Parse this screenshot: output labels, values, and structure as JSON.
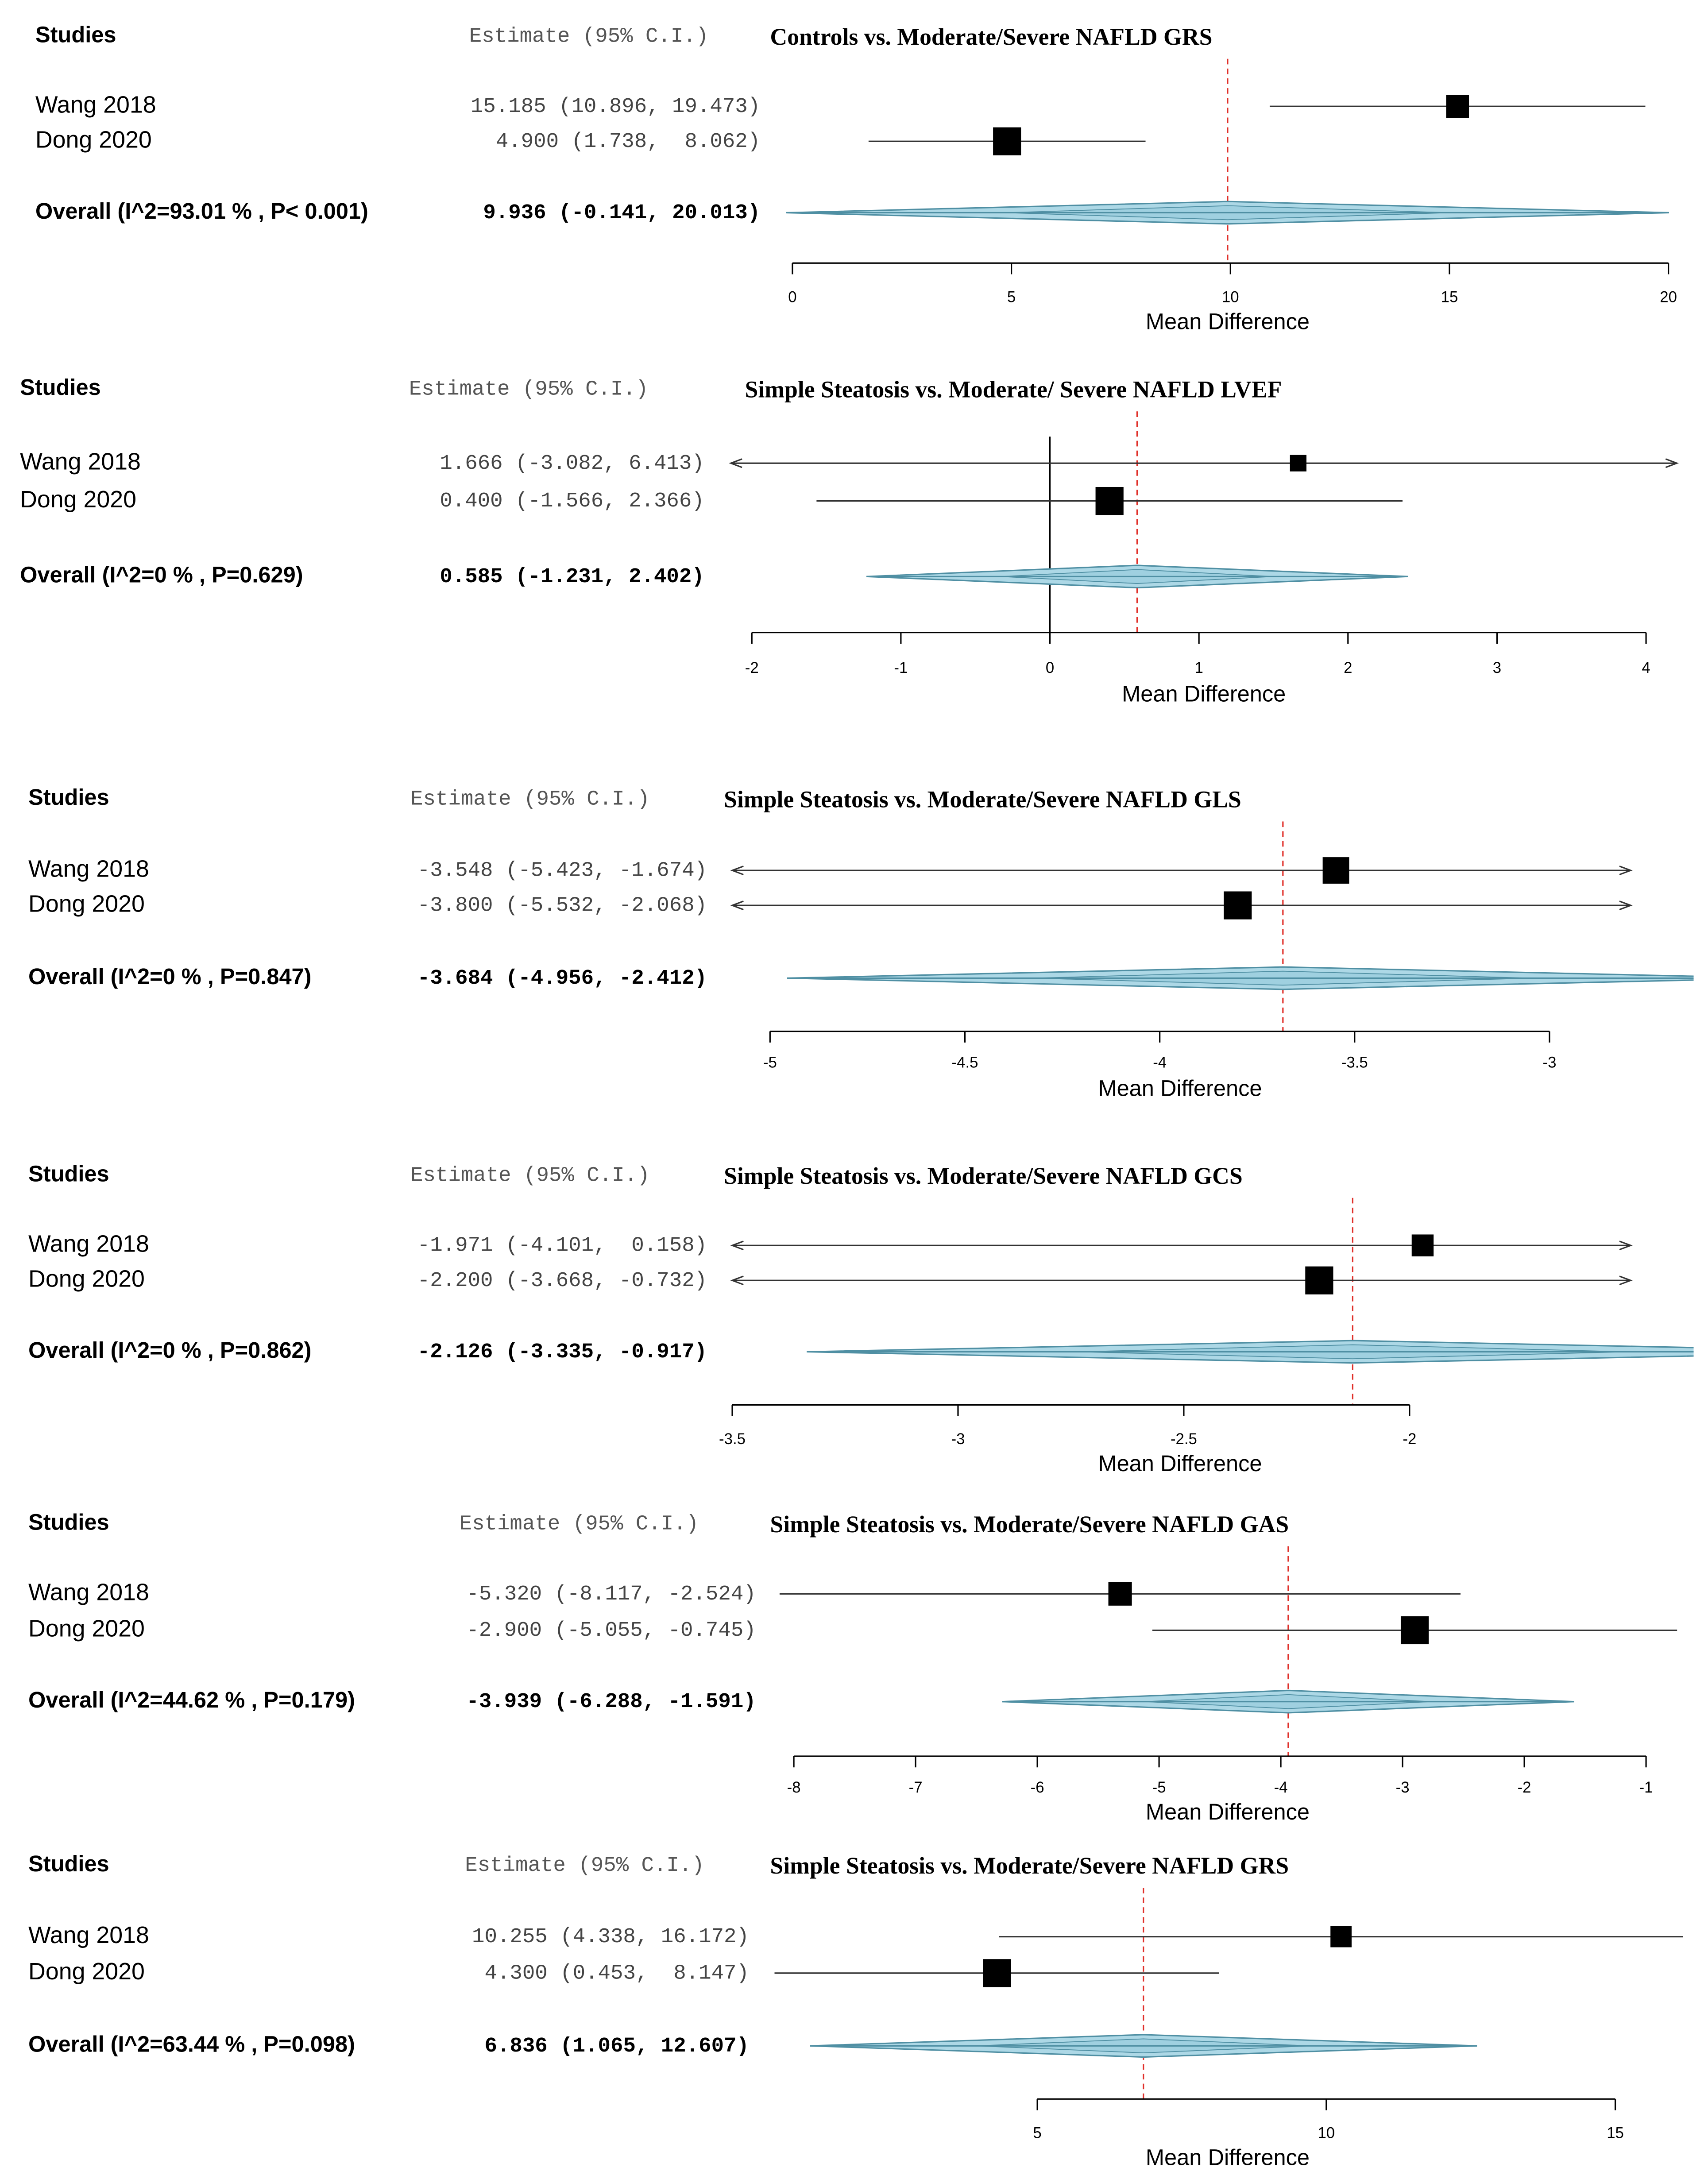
{
  "chart_data": [
    {
      "type": "forest",
      "title": "Controls vs. Moderate/Severe NAFLD GRS",
      "headers": [
        "Studies",
        "Estimate (95% C.I.)"
      ],
      "categories": [
        "Wang 2018",
        "Dong 2020"
      ],
      "values": [
        15.185,
        4.9
      ],
      "lower": [
        10.896,
        1.738
      ],
      "upper": [
        19.473,
        8.062
      ],
      "value_labels": [
        "15.185 (10.896, 19.473)",
        "4.900 (1.738,  8.062)"
      ],
      "overall": {
        "label": "Overall (I^2=93.01 % , P< 0.001)",
        "value": 9.936,
        "lower": -0.141,
        "upper": 20.013,
        "value_label": "9.936 (-0.141, 20.013)"
      },
      "xlabel": "Mean Difference",
      "xlim": [
        0,
        20
      ],
      "xticks": [
        0,
        5,
        10,
        15,
        20
      ]
    },
    {
      "type": "forest",
      "title": "Simple Steatosis vs. Moderate/ Severe NAFLD LVEF",
      "headers": [
        "Studies",
        "Estimate (95% C.I.)"
      ],
      "categories": [
        "Wang 2018",
        "Dong 2020"
      ],
      "values": [
        1.666,
        0.4
      ],
      "lower": [
        -3.082,
        -1.566
      ],
      "upper": [
        6.413,
        2.366
      ],
      "value_labels": [
        "1.666 (-3.082, 6.413)",
        "0.400 (-1.566, 2.366)"
      ],
      "overall": {
        "label": "Overall (I^2=0 % , P=0.629)",
        "value": 0.585,
        "lower": -1.231,
        "upper": 2.402,
        "value_label": "0.585 (-1.231, 2.402)"
      },
      "xlabel": "Mean Difference",
      "xlim": [
        -2,
        4
      ],
      "xticks": [
        -2,
        -1,
        0,
        1,
        2,
        3,
        4
      ],
      "null_line": 0
    },
    {
      "type": "forest",
      "title": "Simple Steatosis vs. Moderate/Severe NAFLD GLS",
      "headers": [
        "Studies",
        "Estimate (95% C.I.)"
      ],
      "categories": [
        "Wang 2018",
        "Dong 2020"
      ],
      "values": [
        -3.548,
        -3.8
      ],
      "lower": [
        -5.423,
        -5.532
      ],
      "upper": [
        -1.674,
        -2.068
      ],
      "value_labels": [
        "-3.548 (-5.423, -1.674)",
        "-3.800 (-5.532, -2.068)"
      ],
      "overall": {
        "label": "Overall (I^2=0 % , P=0.847)",
        "value": -3.684,
        "lower": -4.956,
        "upper": -2.412,
        "value_label": "-3.684 (-4.956, -2.412)"
      },
      "xlabel": "Mean Difference",
      "xlim": [
        -5,
        -3
      ],
      "xticks": [
        -5,
        -4.5,
        -4,
        -3.5,
        -3
      ]
    },
    {
      "type": "forest",
      "title": "Simple Steatosis vs. Moderate/Severe NAFLD GCS",
      "headers": [
        "Studies",
        "Estimate (95% C.I.)"
      ],
      "categories": [
        "Wang 2018",
        "Dong 2020"
      ],
      "values": [
        -1.971,
        -2.2
      ],
      "lower": [
        -4.101,
        -3.668
      ],
      "upper": [
        0.158,
        -0.732
      ],
      "value_labels": [
        "-1.971 (-4.101,  0.158)",
        "-2.200 (-3.668, -0.732)"
      ],
      "overall": {
        "label": "Overall (I^2=0 % , P=0.862)",
        "value": -2.126,
        "lower": -3.335,
        "upper": -0.917,
        "value_label": "-2.126 (-3.335, -0.917)"
      },
      "xlabel": "Mean Difference",
      "xlim": [
        -3.5,
        -2
      ],
      "xticks": [
        -3.5,
        -3,
        -2.5,
        -2
      ]
    },
    {
      "type": "forest",
      "title": "Simple Steatosis vs. Moderate/Severe NAFLD GAS",
      "headers": [
        "Studies",
        "Estimate (95% C.I.)"
      ],
      "categories": [
        "Wang 2018",
        "Dong 2020"
      ],
      "values": [
        -5.32,
        -2.9
      ],
      "lower": [
        -8.117,
        -5.055
      ],
      "upper": [
        -2.524,
        -0.745
      ],
      "value_labels": [
        "-5.320 (-8.117, -2.524)",
        "-2.900 (-5.055, -0.745)"
      ],
      "overall": {
        "label": "Overall (I^2=44.62 % , P=0.179)",
        "value": -3.939,
        "lower": -6.288,
        "upper": -1.591,
        "value_label": "-3.939 (-6.288, -1.591)"
      },
      "xlabel": "Mean Difference",
      "xlim": [
        -8,
        -1
      ],
      "xticks": [
        -8,
        -7,
        -6,
        -5,
        -4,
        -3,
        -2,
        -1
      ]
    },
    {
      "type": "forest",
      "title": "Simple Steatosis vs. Moderate/Severe NAFLD GRS",
      "headers": [
        "Studies",
        "Estimate (95% C.I.)"
      ],
      "categories": [
        "Wang 2018",
        "Dong 2020"
      ],
      "values": [
        10.255,
        4.3
      ],
      "lower": [
        4.338,
        0.453
      ],
      "upper": [
        16.172,
        8.147
      ],
      "value_labels": [
        "10.255 (4.338, 16.172)",
        "4.300 (0.453,  8.147)"
      ],
      "overall": {
        "label": "Overall (I^2=63.44 % , P=0.098)",
        "value": 6.836,
        "lower": 1.065,
        "upper": 12.607,
        "value_label": "6.836 (1.065, 12.607)"
      },
      "xlabel": "Mean Difference",
      "xlim": [
        5,
        15
      ],
      "xticks": [
        5,
        10,
        15
      ]
    }
  ]
}
